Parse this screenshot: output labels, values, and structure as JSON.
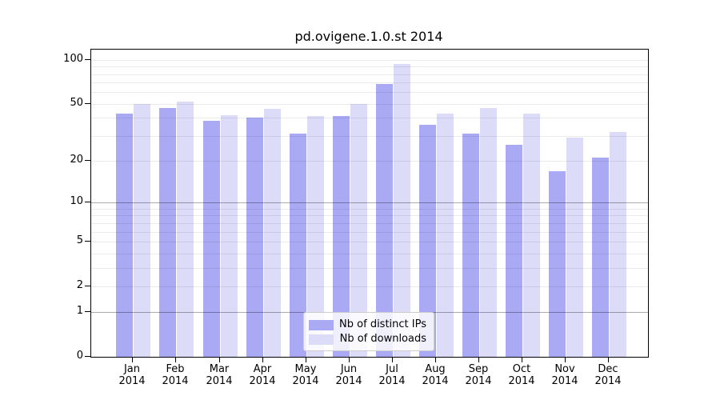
{
  "chart_data": {
    "type": "bar",
    "title": "pd.ovigene.1.0.st 2014",
    "categories": [
      "Jan",
      "Feb",
      "Mar",
      "Apr",
      "May",
      "Jun",
      "Jul",
      "Aug",
      "Sep",
      "Oct",
      "Nov",
      "Dec"
    ],
    "x_tick_year": "2014",
    "series": [
      {
        "name": "Nb of distinct IPs",
        "key": "distinct-ips",
        "color": "#a9a9f4",
        "values": [
          43,
          47,
          38,
          40,
          31,
          41,
          68,
          36,
          31,
          26,
          17,
          21
        ]
      },
      {
        "name": "Nb of downloads",
        "key": "downloads",
        "color": "#dcdcf9",
        "values": [
          50,
          52,
          42,
          46,
          41,
          50,
          94,
          43,
          47,
          43,
          29,
          32
        ]
      }
    ],
    "yscale": "log1p",
    "ylim": [
      0,
      117.5
    ],
    "y_ticks": [
      {
        "value": 100,
        "label": "100"
      },
      {
        "value": 50,
        "label": "50"
      },
      {
        "value": 20,
        "label": "20"
      },
      {
        "value": 10,
        "label": "10"
      },
      {
        "value": 5,
        "label": "5"
      },
      {
        "value": 2,
        "label": "2"
      },
      {
        "value": 1,
        "label": "1"
      },
      {
        "value": 0,
        "label": "0"
      }
    ],
    "gridlines": {
      "major": [
        1,
        10
      ],
      "minor": [
        2,
        3,
        4,
        5,
        6,
        7,
        8,
        9,
        20,
        30,
        40,
        50,
        60,
        70,
        80,
        90,
        100
      ]
    },
    "legend": {
      "position": "lower center inside plot"
    },
    "colors": {
      "bar_distinct_ips": "#a9a9f4",
      "bar_downloads": "#dcdcf9",
      "grid_major": "rgba(0,0,0,0.33)",
      "grid_minor": "rgba(0,0,0,0.08)",
      "frame": "#000000",
      "text": "#000000"
    },
    "grid_on": true
  }
}
